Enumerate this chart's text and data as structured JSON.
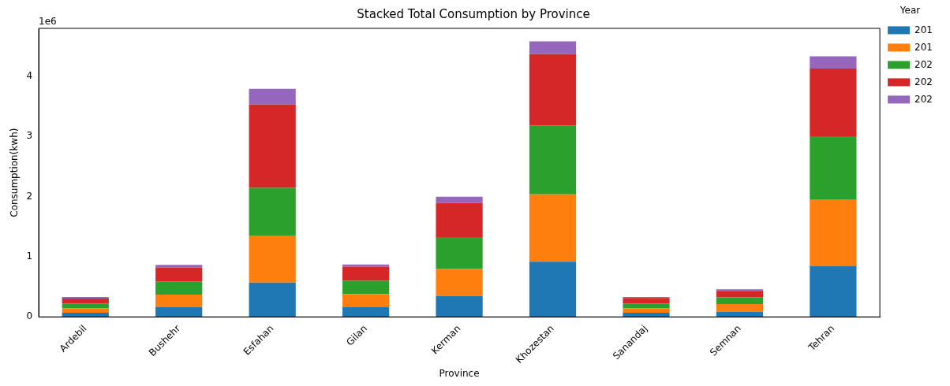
{
  "chart_data": {
    "type": "bar",
    "title": "Stacked Total Consumption by Province",
    "xlabel": "Province",
    "ylabel": "Consumption(kwh)",
    "legend_title": "Year",
    "categories": [
      "Ardebil",
      "Bushehr",
      "Esfahan",
      "Gilan",
      "Kerman",
      "Khozestan",
      "Sanandaj",
      "Semnan",
      "Tehran"
    ],
    "series": [
      {
        "name": "201",
        "color": "#1f77b4",
        "values": [
          0.07,
          0.161,
          0.57,
          0.169,
          0.347,
          0.917,
          0.07,
          0.087,
          0.843
        ]
      },
      {
        "name": "201",
        "color": "#ff7f0e",
        "values": [
          0.07,
          0.211,
          0.773,
          0.211,
          0.451,
          1.12,
          0.07,
          0.128,
          1.103
        ]
      },
      {
        "name": "202",
        "color": "#2ca02c",
        "values": [
          0.083,
          0.219,
          0.802,
          0.219,
          0.528,
          1.149,
          0.083,
          0.111,
          1.058
        ]
      },
      {
        "name": "202",
        "color": "#d62728",
        "values": [
          0.083,
          0.231,
          1.388,
          0.236,
          0.567,
          1.186,
          0.091,
          0.108,
          1.128
        ]
      },
      {
        "name": "202",
        "color": "#9467bd",
        "values": [
          0.025,
          0.042,
          0.26,
          0.037,
          0.107,
          0.211,
          0.017,
          0.025,
          0.203
        ]
      }
    ],
    "stacked": true,
    "ylim": [
      0,
      4.8
    ],
    "yticks": [
      0,
      1,
      2,
      3,
      4
    ],
    "annotations": [
      "1e6"
    ],
    "legend": "top right",
    "grid": false
  }
}
